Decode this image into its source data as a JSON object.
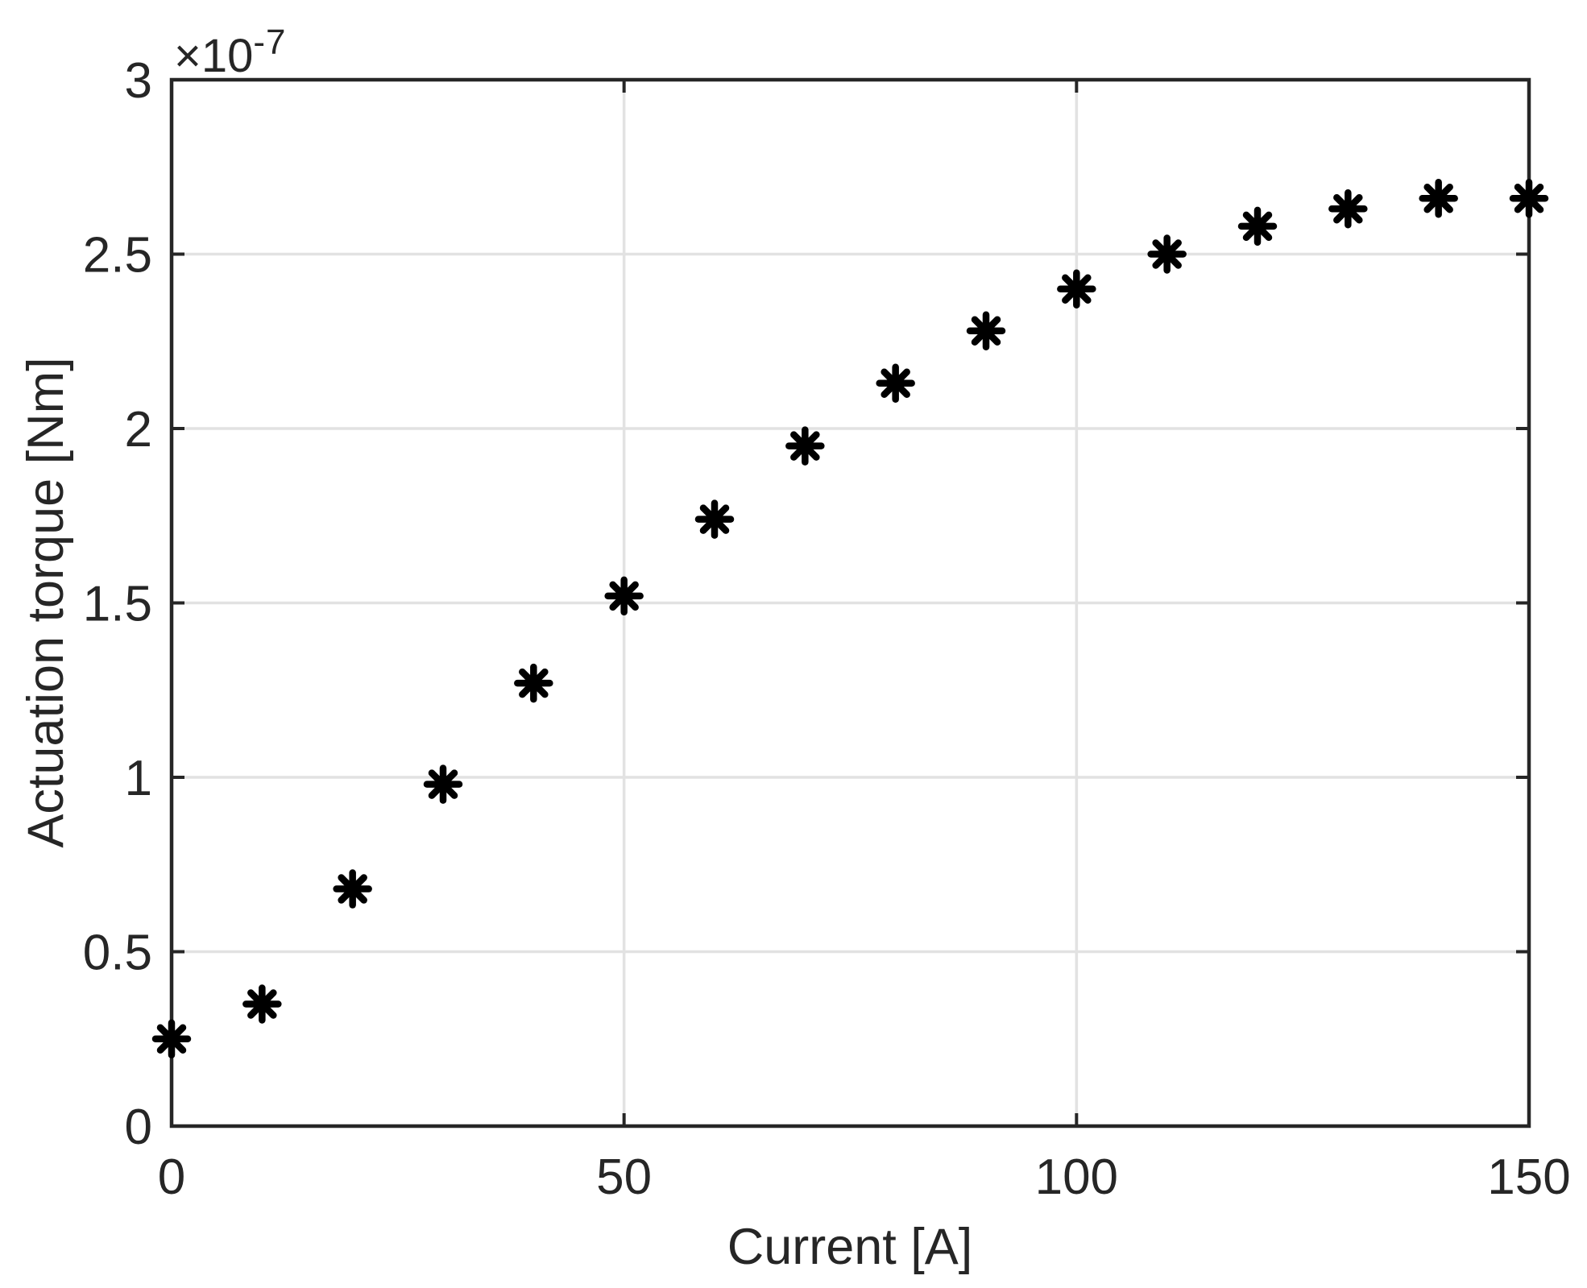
{
  "figure": {
    "background": "#ffffff",
    "axis_color": "#262626",
    "grid_color": "#e2e2e2",
    "marker_color": "#000000",
    "tick_label_color": "#262626"
  },
  "chart_data": {
    "type": "scatter",
    "title": "",
    "xlabel": "Current [A]",
    "ylabel": "Actuation torque [Nm]",
    "marker": "asterisk",
    "grid": true,
    "legend_position": "none",
    "x": [
      0,
      10,
      20,
      30,
      40,
      50,
      60,
      70,
      80,
      90,
      100,
      110,
      120,
      130,
      140,
      150
    ],
    "y": [
      0.25,
      0.35,
      0.68,
      0.98,
      1.27,
      1.52,
      1.74,
      1.95,
      2.13,
      2.28,
      2.4,
      2.5,
      2.58,
      2.63,
      2.66,
      2.66
    ],
    "y_unit_multiplier": 1e-07,
    "exponent_base": "×10",
    "exponent_power": "-7",
    "xlim": [
      0,
      150
    ],
    "ylim": [
      0,
      3
    ],
    "xticks": [
      0,
      50,
      100,
      150
    ],
    "yticks": [
      0,
      0.5,
      1,
      1.5,
      2,
      2.5,
      3
    ],
    "xticklabels": [
      "0",
      "50",
      "100",
      "150"
    ],
    "yticklabels": [
      "0",
      "0.5",
      "1",
      "1.5",
      "2",
      "2.5",
      "3"
    ]
  }
}
